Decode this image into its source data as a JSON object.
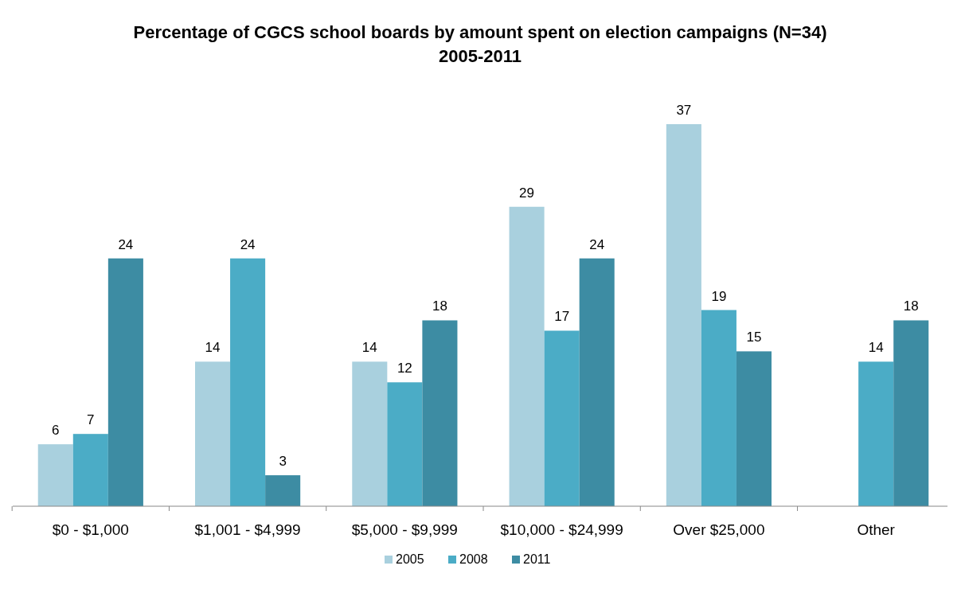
{
  "chart_data": {
    "type": "bar",
    "title": "Percentage of CGCS school boards by amount spent on election campaigns (N=34)\n2005-2011",
    "categories": [
      "$0 - $1,000",
      "$1,001 - $4,999",
      "$5,000 - $9,999",
      "$10,000 - $24,999",
      "Over $25,000",
      "Other"
    ],
    "series": [
      {
        "name": "2005",
        "color": "#a9d0de",
        "values": [
          6,
          14,
          14,
          29,
          37,
          null
        ]
      },
      {
        "name": "2008",
        "color": "#4bacc6",
        "values": [
          7,
          24,
          12,
          17,
          19,
          14
        ]
      },
      {
        "name": "2011",
        "color": "#3d8ca3",
        "values": [
          24,
          3,
          18,
          24,
          15,
          18
        ]
      }
    ],
    "data_labels": true,
    "legend": "bottom"
  }
}
